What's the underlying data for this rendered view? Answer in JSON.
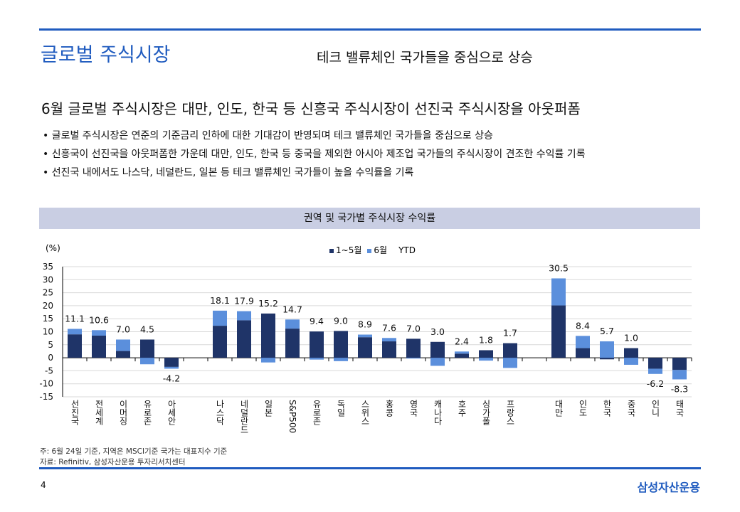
{
  "header": {
    "title": "글로벌 주식시장",
    "subtitle": "테크 밸류체인 국가들을 중심으로 상승"
  },
  "headline": "6월 글로벌 주식시장은 대만, 인도, 한국 등 신흥국 주식시장이 선진국 주식시장을 아웃퍼폼",
  "bullets": [
    "• 글로벌 주식시장은 연준의 기준금리 인하에 대한 기대감이 반영되며 테크 밸류체인 국가들을 중심으로 상승",
    "• 신흥국이 선진국을 아웃퍼폼한 가운데 대만, 인도, 한국 등 중국을 제외한 아시아 제조업 국가들의 주식시장이 견조한 수익률 기록",
    "• 선진국 내에서도 나스닥, 네덜란드, 일본 등 테크 밸류체인 국가들이 높을 수익률을 기록"
  ],
  "chart_data": {
    "type": "bar",
    "title": "권역 및 국가별 주식시장 수익률",
    "ylabel": "(%)",
    "ylim": [
      -15,
      35
    ],
    "yticks": [
      35,
      30,
      25,
      20,
      15,
      10,
      5,
      0,
      -5,
      -10,
      -15
    ],
    "legend": [
      "1~5월",
      "6월",
      "YTD"
    ],
    "colors": {
      "jan_may": "#1f3468",
      "june": "#5b8fdc"
    },
    "categories": [
      "선진국",
      "전세계",
      "이머징",
      "유로존",
      "아세안",
      "",
      "나스닥",
      "네덜란드",
      "일본",
      "S&P500",
      "유로존",
      "독일",
      "스위스",
      "홍콩",
      "영국",
      "캐나다",
      "호주",
      "싱가폴",
      "프랑스",
      "",
      "대만",
      "인도",
      "한국",
      "중국",
      "인니",
      "태국"
    ],
    "series": [
      {
        "name": "1~5월",
        "values": [
          9.0,
          8.5,
          2.6,
          7.0,
          -3.5,
          null,
          12.3,
          14.4,
          17.0,
          11.2,
          10.1,
          10.3,
          7.9,
          6.3,
          7.3,
          6.1,
          1.6,
          2.9,
          5.6,
          null,
          20.1,
          3.7,
          -0.6,
          3.7,
          -4.2,
          -4.7
        ]
      },
      {
        "name": "6월",
        "values": [
          2.1,
          2.1,
          4.4,
          -2.5,
          -0.7,
          null,
          5.8,
          3.5,
          -1.8,
          3.5,
          -0.7,
          -1.3,
          1.0,
          1.3,
          -0.3,
          -3.1,
          0.8,
          -1.1,
          -3.9,
          null,
          10.4,
          4.7,
          6.3,
          -2.7,
          -2.0,
          -3.6
        ]
      },
      {
        "name": "YTD",
        "values": [
          "11.1",
          "10.6",
          "7.0",
          "4.5",
          "-4.2",
          null,
          "18.1",
          "17.9",
          "15.2",
          "14.7",
          "9.4",
          "9.0",
          "8.9",
          "7.6",
          "7.0",
          "3.0",
          "2.4",
          "1.8",
          "1.7",
          null,
          "30.5",
          "8.4",
          "5.7",
          "1.0",
          "-6.2",
          "-8.3"
        ]
      }
    ]
  },
  "notes": [
    "주: 6월 24일 기준, 지역은 MSCI기준 국가는 대표지수 기준",
    "자료: Refinitiv, 삼성자산운용 투자리서치센터"
  ],
  "footer": {
    "page": "4",
    "logo": "삼성자산운용"
  }
}
